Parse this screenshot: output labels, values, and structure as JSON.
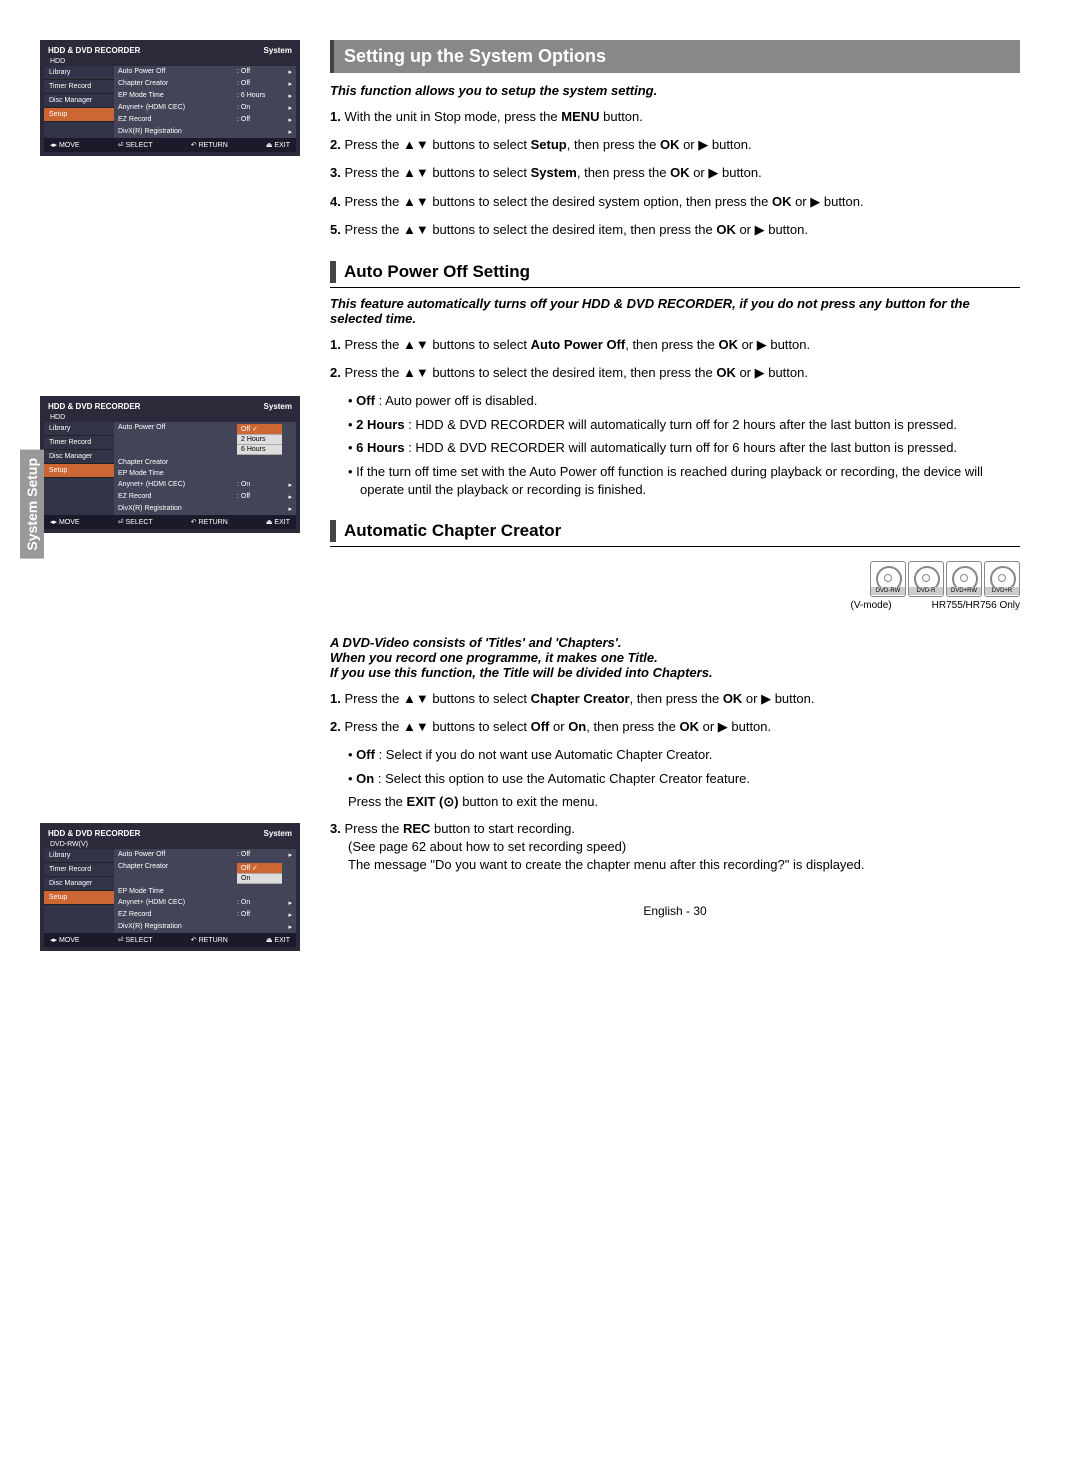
{
  "side_tab": "System Setup",
  "menus": {
    "common": {
      "title": "HDD & DVD RECORDER",
      "breadcrumb_sys": "System",
      "nav": [
        "Library",
        "Timer Record",
        "Disc Manager",
        "Setup"
      ],
      "footer": [
        "◂▸ MOVE",
        "⏎ SELECT",
        "↶ RETURN",
        "⏏ EXIT"
      ]
    },
    "shot1": {
      "sub": "HDD",
      "rows": [
        {
          "label": "Auto Power Off",
          "val": ": Off",
          "arr": "▸"
        },
        {
          "label": "Chapter Creator",
          "val": ": Off",
          "arr": "▸"
        },
        {
          "label": "EP Mode Time",
          "val": ": 6 Hours",
          "arr": "▸"
        },
        {
          "label": "Anynet+ (HDMI CEC)",
          "val": ": On",
          "arr": "▸"
        },
        {
          "label": "EZ Record",
          "val": ": Off",
          "arr": "▸"
        },
        {
          "label": "DivX(R) Registration",
          "val": "",
          "arr": "▸"
        }
      ]
    },
    "shot2": {
      "sub": "HDD",
      "rows": [
        {
          "label": "Auto Power Off",
          "val": "",
          "drop": [
            "Off",
            "2 Hours",
            "6 Hours"
          ],
          "sel": 0
        },
        {
          "label": "Chapter Creator",
          "val": "",
          "arr": ""
        },
        {
          "label": "EP Mode Time",
          "val": "",
          "arr": ""
        },
        {
          "label": "Anynet+ (HDMI CEC)",
          "val": ": On",
          "arr": "▸"
        },
        {
          "label": "EZ Record",
          "val": ": Off",
          "arr": "▸"
        },
        {
          "label": "DivX(R) Registration",
          "val": "",
          "arr": "▸"
        }
      ]
    },
    "shot3": {
      "sub": "DVD-RW(V)",
      "rows": [
        {
          "label": "Auto Power Off",
          "val": ": Off",
          "arr": "▸"
        },
        {
          "label": "Chapter Creator",
          "val": "",
          "drop": [
            "Off",
            "On"
          ],
          "sel": 0
        },
        {
          "label": "EP Mode Time",
          "val": "",
          "arr": ""
        },
        {
          "label": "Anynet+ (HDMI CEC)",
          "val": ": On",
          "arr": "▸"
        },
        {
          "label": "EZ Record",
          "val": ": Off",
          "arr": "▸"
        },
        {
          "label": "DivX(R) Registration",
          "val": "",
          "arr": "▸"
        }
      ]
    }
  },
  "s1": {
    "title": "Setting up the System Options",
    "intro": "This function allows you to setup the system setting.",
    "steps": [
      "With the unit in Stop mode, press the <b>MENU</b> button.",
      "Press the ▲▼ buttons to select <b>Setup</b>, then press the <b>OK</b> or ▶ button.",
      "Press the ▲▼ buttons to select <b>System</b>, then press the <b>OK</b> or ▶ button.",
      "Press the ▲▼ buttons to select the desired  system option, then press the <b>OK</b> or ▶ button.",
      "Press the ▲▼ buttons to select the desired item, then press the <b>OK</b> or ▶ button."
    ]
  },
  "s2": {
    "title": "Auto Power Off Setting",
    "intro": "This feature automatically turns off your HDD & DVD RECORDER, if you do not press any button for the selected time.",
    "steps": [
      "Press the ▲▼ buttons to select <b>Auto Power Off</b>, then press the <b>OK</b> or ▶ button.",
      "Press the ▲▼ buttons to select the desired item, then press the <b>OK</b> or ▶ button."
    ],
    "bullets": [
      "<b>Off</b> : Auto power off is disabled.",
      "<b>2 Hours</b> : HDD & DVD RECORDER will automatically turn off for 2 hours after the last button is pressed.",
      "<b>6 Hours</b> : HDD & DVD RECORDER will automatically turn off for 6 hours after the last button is pressed.",
      "If the turn off time set with the Auto Power off function is reached during playback or recording, the device will operate until the playback or recording is finished."
    ]
  },
  "s3": {
    "title": "Automatic Chapter Creator",
    "discs": [
      "DVD-RW",
      "DVD-R",
      "DVD+RW",
      "DVD+R"
    ],
    "disc_note_left": "(V-mode)",
    "disc_note_right": "HR755/HR756 Only",
    "intro": "A DVD-Video consists of 'Titles' and 'Chapters'.\nWhen you record one programme, it makes one Title.\nIf you use this function, the Title will be divided into Chapters.",
    "steps": [
      "Press the ▲▼ buttons to select <b>Chapter Creator</b>, then press the <b>OK</b> or ▶ button.",
      "Press the ▲▼ buttons to select <b>Off</b> or <b>On</b>, then press the <b>OK</b> or ▶ button."
    ],
    "bullets2": [
      "<b>Off</b> : Select if you do not want use Automatic Chapter Creator.",
      "<b>On</b> : Select this option to use the Automatic Chapter Creator feature."
    ],
    "exit_line": "Press the <b>EXIT (⊙)</b> button to exit the menu.",
    "step3": "Press the <b>REC</b> button to start recording.\n(See page 62 about how to set recording speed)\nThe message \"Do you want to create the chapter menu after this recording?\" is displayed."
  },
  "footer": "English - 30"
}
